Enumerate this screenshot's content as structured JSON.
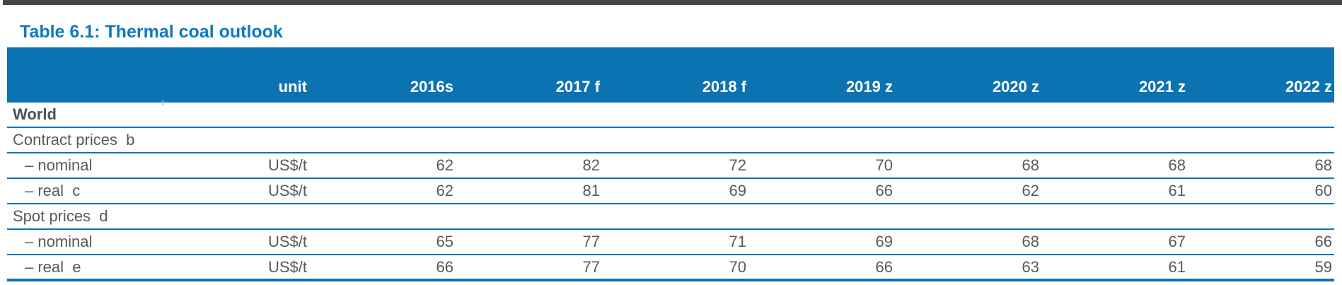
{
  "title": "Table 6.1: Thermal coal outlook",
  "colors": {
    "title_blue": "#0d7ac1",
    "header_bg": "#0b73b2",
    "row_line_blue": "#0e74b3",
    "body_text": "#58595b",
    "top_strip": "#45484b"
  },
  "table": {
    "columns": [
      "unit",
      "2016s",
      "2017 f",
      "2018 f",
      "2019 z",
      "2020 z",
      "2021 z",
      "2022 z"
    ],
    "rows": [
      {
        "label": "World",
        "unit": "",
        "values": [
          "",
          "",
          "",
          "",
          "",
          "",
          ""
        ]
      },
      {
        "label": "Contract prices  b",
        "unit": "",
        "values": [
          "",
          "",
          "",
          "",
          "",
          "",
          ""
        ]
      },
      {
        "label": "– nominal",
        "unit": "US$/t",
        "values": [
          "62",
          "82",
          "72",
          "70",
          "68",
          "68",
          "68"
        ]
      },
      {
        "label": "– real  c",
        "unit": "US$/t",
        "values": [
          "62",
          "81",
          "69",
          "66",
          "62",
          "61",
          "60"
        ]
      },
      {
        "label": "Spot prices  d",
        "unit": "",
        "values": [
          "",
          "",
          "",
          "",
          "",
          "",
          ""
        ]
      },
      {
        "label": "– nominal",
        "unit": "US$/t",
        "values": [
          "65",
          "77",
          "71",
          "69",
          "68",
          "67",
          "66"
        ]
      },
      {
        "label": "– real  e",
        "unit": "US$/t",
        "values": [
          "66",
          "77",
          "70",
          "66",
          "63",
          "61",
          "59"
        ]
      }
    ]
  }
}
